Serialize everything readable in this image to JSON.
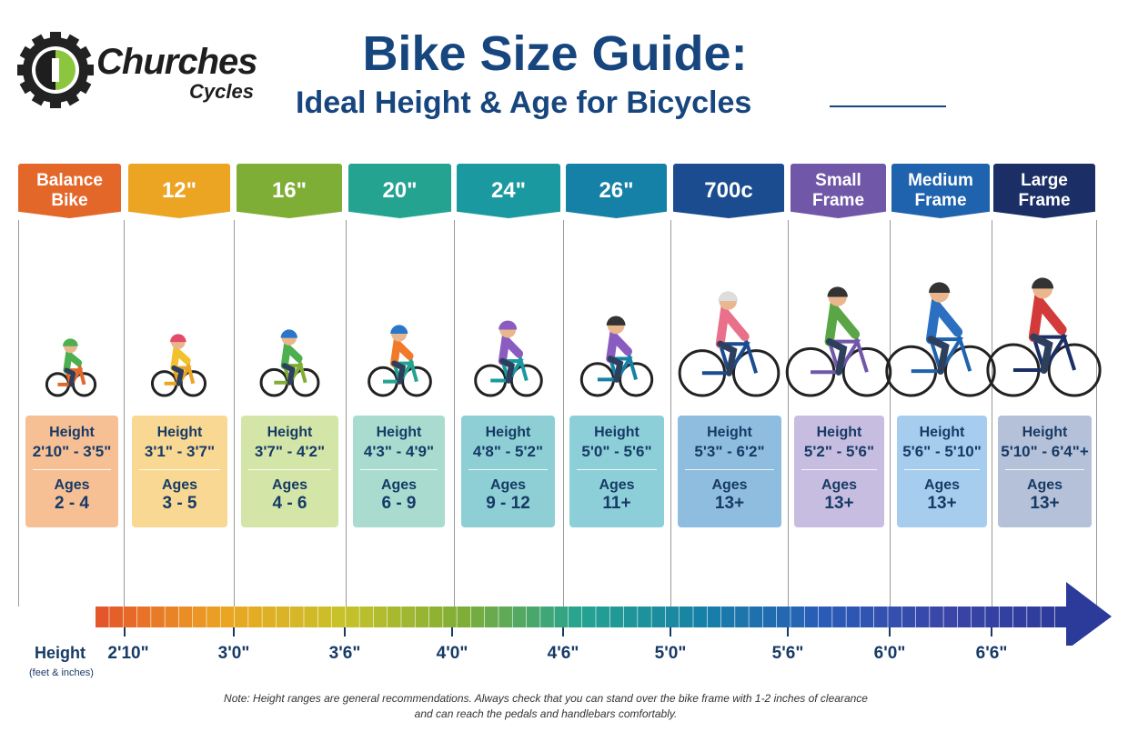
{
  "logo": {
    "name": "Churches",
    "sub": "Cycles"
  },
  "header": {
    "title": "Bike Size Guide:",
    "subtitle": "Ideal Height & Age for Bicycles"
  },
  "columns": [
    {
      "label": "Balance Bike",
      "height_label": "Height",
      "height": "2'10\" - 3'5\"",
      "ages_label": "Ages",
      "ages": "2 - 4",
      "color": "#e4672a",
      "card_color": "#f6bf94"
    },
    {
      "label": "12\"",
      "height_label": "Height",
      "height": "3'1\" - 3'7\"",
      "ages_label": "Ages",
      "ages": "3 - 5",
      "color": "#eca423",
      "card_color": "#f8d892"
    },
    {
      "label": "16\"",
      "height_label": "Height",
      "height": "3'7\" - 4'2\"",
      "ages_label": "Ages",
      "ages": "4 - 6",
      "color": "#7fae36",
      "card_color": "#d3e6a8"
    },
    {
      "label": "20\"",
      "height_label": "Height",
      "height": "4'3\" - 4'9\"",
      "ages_label": "Ages",
      "ages": "6 - 9",
      "color": "#25a391",
      "card_color": "#a9dccf"
    },
    {
      "label": "24\"",
      "height_label": "Height",
      "height": "4'8\" - 5'2\"",
      "ages_label": "Ages",
      "ages": "9 - 12",
      "color": "#1a9aa0",
      "card_color": "#8dcfd4"
    },
    {
      "label": "26\"",
      "height_label": "Height",
      "height": "5'0\" - 5'6\"",
      "ages_label": "Ages",
      "ages": "11+",
      "color": "#1681a6",
      "card_color": "#8ccfd8"
    },
    {
      "label": "700c",
      "height_label": "Height",
      "height": "5'3\" - 6'2\"",
      "ages_label": "Ages",
      "ages": "13+",
      "color": "#1a4c8f",
      "card_color": "#8ebddf"
    },
    {
      "label": "Small Frame",
      "height_label": "Height",
      "height": "5'2\" - 5'6\"",
      "ages_label": "Ages",
      "ages": "13+",
      "color": "#7057a8",
      "card_color": "#c7bde0"
    },
    {
      "label": "Medium Frame",
      "height_label": "Height",
      "height": "5'6\" - 5'10\"",
      "ages_label": "Ages",
      "ages": "13+",
      "color": "#1f62ad",
      "card_color": "#a6cdee"
    },
    {
      "label": "Large Frame",
      "height_label": "Height",
      "height": "5'10\" - 6'4\"+",
      "ages_label": "Ages",
      "ages": "13+",
      "color": "#1b2f66",
      "card_color": "#b5c1d8"
    }
  ],
  "scale": {
    "title": "Height",
    "subtitle": "(feet & inches)",
    "ticks": [
      "2'10\"",
      "3'0\"",
      "3'6\"",
      "4'0\"",
      "4'6\"",
      "5'0\"",
      "5'6\"",
      "6'0\"",
      "6'6\""
    ]
  },
  "note": {
    "line1": "Note: Height ranges are general recommendations.   Always check that you can stand over the bike frame with 1-2 inches of clearance",
    "line2": "and can reach the pedals and handlebars comfortably."
  }
}
